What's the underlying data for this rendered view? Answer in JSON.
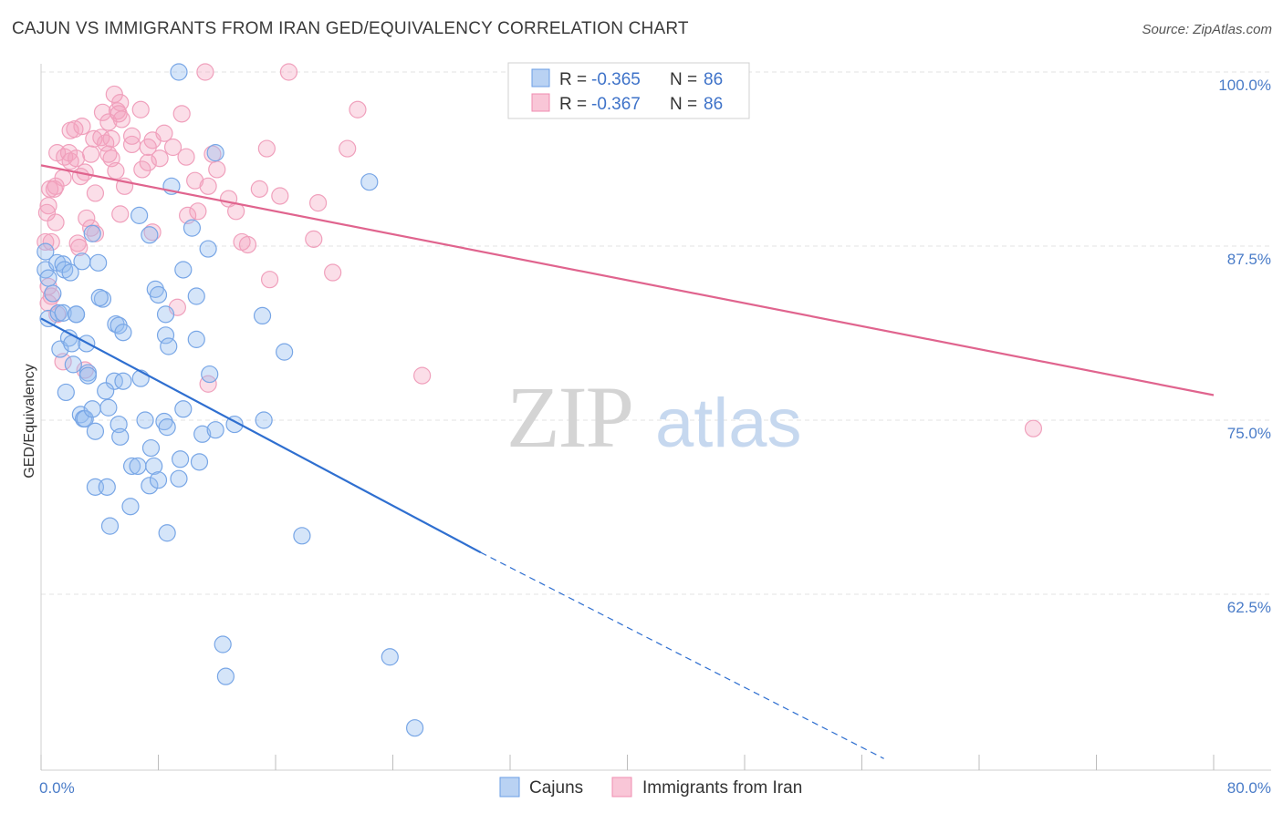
{
  "header": {
    "title": "CAJUN VS IMMIGRANTS FROM IRAN GED/EQUIVALENCY CORRELATION CHART",
    "source": "Source: ZipAtlas.com"
  },
  "watermark": {
    "zip": "ZIP",
    "atlas": "atlas"
  },
  "legend": {
    "rows": [
      {
        "r_label": "R =",
        "r_value": "-0.365",
        "n_label": "N =",
        "n_value": "86"
      },
      {
        "r_label": "R =",
        "r_value": "-0.367",
        "n_label": "N =",
        "n_value": "86"
      }
    ]
  },
  "chart_data": {
    "type": "scatter",
    "title": "CAJUN VS IMMIGRANTS FROM IRAN GED/EQUIVALENCY CORRELATION CHART",
    "xlabel": "",
    "ylabel": "GED/Equivalency",
    "xlim": [
      0,
      80
    ],
    "ylim": [
      51,
      102
    ],
    "x_tick_labels": [
      "0.0%",
      "80.0%"
    ],
    "y_ticks": [
      62.5,
      75.0,
      87.5,
      100.0
    ],
    "y_tick_labels": [
      "62.5%",
      "75.0%",
      "87.5%",
      "100.0%"
    ],
    "grid": true,
    "legend_position": "top-center",
    "colors": {
      "cajuns": "#6a9ee6",
      "iran": "#f08cb0",
      "cajuns_line": "#2f6fd0",
      "iran_line": "#e0648e"
    },
    "series": [
      {
        "name": "Cajuns",
        "r": -0.365,
        "n": 86,
        "trend": {
          "x": [
            0,
            30
          ],
          "y": [
            82.3,
            65.5
          ],
          "dashed_to": [
            57.5,
            50.7
          ]
        },
        "points": [
          [
            9.4,
            100
          ],
          [
            0.3,
            87.1
          ],
          [
            0.3,
            85.8
          ],
          [
            0.5,
            85.2
          ],
          [
            1.1,
            86.3
          ],
          [
            1.5,
            86.2
          ],
          [
            1.6,
            85.8
          ],
          [
            2.0,
            85.6
          ],
          [
            2.8,
            86.4
          ],
          [
            3.9,
            86.3
          ],
          [
            0.8,
            84.1
          ],
          [
            0.5,
            82.3
          ],
          [
            1.2,
            82.7
          ],
          [
            1.5,
            82.7
          ],
          [
            2.4,
            82.6
          ],
          [
            2.4,
            82.6
          ],
          [
            4.2,
            83.7
          ],
          [
            4.0,
            83.8
          ],
          [
            1.3,
            80.1
          ],
          [
            1.9,
            80.9
          ],
          [
            2.2,
            79.0
          ],
          [
            2.1,
            80.5
          ],
          [
            3.1,
            80.5
          ],
          [
            3.2,
            78.4
          ],
          [
            3.2,
            78.2
          ],
          [
            5.1,
            81.9
          ],
          [
            5.3,
            81.8
          ],
          [
            5.6,
            81.3
          ],
          [
            5.0,
            77.8
          ],
          [
            5.6,
            77.8
          ],
          [
            6.8,
            78.0
          ],
          [
            4.4,
            77.1
          ],
          [
            1.7,
            77.0
          ],
          [
            2.7,
            75.4
          ],
          [
            2.9,
            75.1
          ],
          [
            3.0,
            75.1
          ],
          [
            3.5,
            75.8
          ],
          [
            4.6,
            75.9
          ],
          [
            3.7,
            74.2
          ],
          [
            5.3,
            74.7
          ],
          [
            5.4,
            73.8
          ],
          [
            7.1,
            75.0
          ],
          [
            8.4,
            74.9
          ],
          [
            8.6,
            74.5
          ],
          [
            9.7,
            75.8
          ],
          [
            11.0,
            74.0
          ],
          [
            11.9,
            74.3
          ],
          [
            13.2,
            74.7
          ],
          [
            15.2,
            75.0
          ],
          [
            7.5,
            73.0
          ],
          [
            6.2,
            71.7
          ],
          [
            6.6,
            71.7
          ],
          [
            7.7,
            71.7
          ],
          [
            9.5,
            72.2
          ],
          [
            10.8,
            72.0
          ],
          [
            3.7,
            70.2
          ],
          [
            4.5,
            70.2
          ],
          [
            7.4,
            70.3
          ],
          [
            8.0,
            70.7
          ],
          [
            9.4,
            70.8
          ],
          [
            6.1,
            68.8
          ],
          [
            4.7,
            67.4
          ],
          [
            8.6,
            66.9
          ],
          [
            17.8,
            66.7
          ],
          [
            6.7,
            89.7
          ],
          [
            7.4,
            88.3
          ],
          [
            10.3,
            88.8
          ],
          [
            3.5,
            88.4
          ],
          [
            11.4,
            87.3
          ],
          [
            7.8,
            84.4
          ],
          [
            8.0,
            84.0
          ],
          [
            9.7,
            85.8
          ],
          [
            10.6,
            83.9
          ],
          [
            8.5,
            82.6
          ],
          [
            15.1,
            82.5
          ],
          [
            8.5,
            81.1
          ],
          [
            8.7,
            80.3
          ],
          [
            10.6,
            80.8
          ],
          [
            16.6,
            79.9
          ],
          [
            11.5,
            78.3
          ],
          [
            22.4,
            92.1
          ],
          [
            11.9,
            94.2
          ],
          [
            8.9,
            91.8
          ],
          [
            12.4,
            58.9
          ],
          [
            12.6,
            56.6
          ],
          [
            23.8,
            58.0
          ],
          [
            25.5,
            52.9
          ]
        ]
      },
      {
        "name": "Immigrants from Iran",
        "r": -0.367,
        "n": 86,
        "trend": {
          "x": [
            0,
            80
          ],
          "y": [
            93.3,
            76.8
          ]
        },
        "points": [
          [
            11.2,
            100
          ],
          [
            16.9,
            100
          ],
          [
            5.0,
            98.4
          ],
          [
            5.4,
            97.8
          ],
          [
            5.2,
            97.2
          ],
          [
            4.2,
            97.1
          ],
          [
            4.6,
            96.4
          ],
          [
            5.3,
            97.0
          ],
          [
            6.8,
            97.3
          ],
          [
            21.6,
            97.3
          ],
          [
            2.0,
            95.8
          ],
          [
            2.3,
            95.9
          ],
          [
            2.8,
            96.1
          ],
          [
            3.6,
            95.2
          ],
          [
            4.1,
            95.3
          ],
          [
            4.4,
            94.9
          ],
          [
            4.8,
            95.2
          ],
          [
            6.2,
            94.8
          ],
          [
            7.6,
            95.1
          ],
          [
            7.3,
            94.6
          ],
          [
            9.0,
            94.6
          ],
          [
            11.7,
            94.1
          ],
          [
            15.4,
            94.5
          ],
          [
            20.9,
            94.5
          ],
          [
            1.1,
            94.2
          ],
          [
            1.6,
            93.9
          ],
          [
            1.9,
            94.2
          ],
          [
            2.0,
            93.6
          ],
          [
            2.4,
            93.8
          ],
          [
            3.4,
            94.1
          ],
          [
            4.8,
            93.8
          ],
          [
            7.3,
            93.5
          ],
          [
            8.1,
            93.8
          ],
          [
            9.9,
            93.9
          ],
          [
            6.9,
            93.0
          ],
          [
            5.1,
            92.9
          ],
          [
            3.0,
            92.8
          ],
          [
            1.5,
            92.4
          ],
          [
            0.6,
            91.6
          ],
          [
            0.9,
            91.6
          ],
          [
            1.0,
            91.8
          ],
          [
            3.7,
            91.3
          ],
          [
            5.7,
            91.8
          ],
          [
            10.5,
            92.2
          ],
          [
            11.4,
            91.8
          ],
          [
            14.9,
            91.6
          ],
          [
            16.3,
            91.1
          ],
          [
            12.8,
            90.9
          ],
          [
            18.9,
            90.6
          ],
          [
            0.5,
            90.4
          ],
          [
            0.4,
            89.9
          ],
          [
            1.0,
            89.2
          ],
          [
            3.1,
            89.5
          ],
          [
            5.4,
            89.8
          ],
          [
            10.0,
            89.7
          ],
          [
            10.7,
            90.0
          ],
          [
            13.3,
            90.0
          ],
          [
            3.4,
            88.8
          ],
          [
            3.7,
            88.4
          ],
          [
            7.6,
            88.5
          ],
          [
            13.7,
            87.8
          ],
          [
            14.1,
            87.6
          ],
          [
            18.6,
            88.0
          ],
          [
            0.3,
            87.8
          ],
          [
            0.7,
            87.8
          ],
          [
            2.5,
            87.7
          ],
          [
            2.6,
            87.4
          ],
          [
            19.9,
            85.6
          ],
          [
            15.6,
            85.1
          ],
          [
            0.5,
            84.6
          ],
          [
            0.7,
            83.9
          ],
          [
            9.3,
            83.1
          ],
          [
            1.1,
            82.6
          ],
          [
            0.5,
            83.4
          ],
          [
            1.5,
            79.2
          ],
          [
            3.0,
            78.6
          ],
          [
            11.4,
            77.6
          ],
          [
            26.0,
            78.2
          ],
          [
            67.7,
            74.4
          ],
          [
            6.2,
            95.4
          ],
          [
            9.6,
            97.0
          ],
          [
            4.6,
            94.1
          ],
          [
            2.7,
            92.5
          ],
          [
            8.4,
            95.6
          ],
          [
            5.5,
            96.6
          ],
          [
            12.0,
            93.0
          ]
        ]
      }
    ]
  },
  "bottom_legend": {
    "cajuns": "Cajuns",
    "iran": "Immigrants from Iran"
  }
}
